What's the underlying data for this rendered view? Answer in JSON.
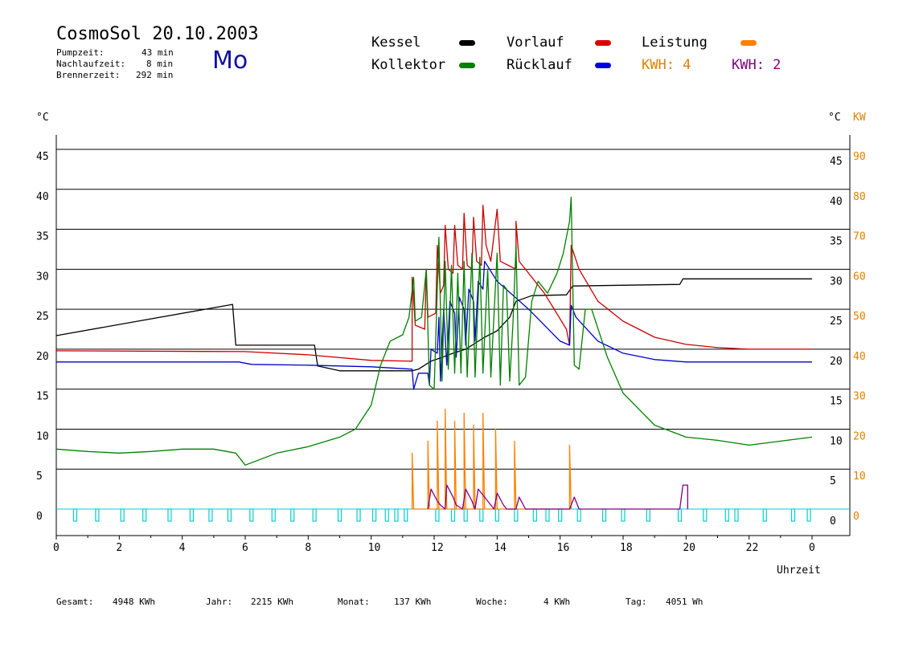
{
  "header": {
    "title": "CosmoSol 20.10.2003",
    "pumpzeit_label": "Pumpzeit:",
    "pumpzeit_value": "43 min",
    "nachlauf_label": "Nachlaufzeit:",
    "nachlauf_value": "8 min",
    "brenner_label": "Brennerzeit:",
    "brenner_value": "292 min",
    "weekday": "Mo"
  },
  "legend": {
    "kessel": "Kessel",
    "kollektor": "Kollektor",
    "vorlauf": "Vorlauf",
    "ruecklauf": "Rücklauf",
    "leistung": "Leistung",
    "kwh1": "KWH: 4",
    "kwh2": "KWH: 2"
  },
  "footer": {
    "gesamt_label": "Gesamt:",
    "gesamt_value": "4948 KWh",
    "jahr_label": "Jahr:",
    "jahr_value": "2215 KWh",
    "monat_label": "Monat:",
    "monat_value": "137 KWh",
    "woche_label": "Woche:",
    "woche_value": "4 KWh",
    "tag_label": "Tag:",
    "tag_value": "4051 Wh"
  },
  "chart_data": {
    "type": "line",
    "xlabel": "Uhrzeit",
    "ylabel_left": "°C",
    "ylabel_right": "°C",
    "ylabel_right2": "KW",
    "xlim": [
      0,
      24
    ],
    "ylim": [
      0,
      45
    ],
    "y2lim": [
      0,
      90
    ],
    "x_ticks": [
      "0",
      "2",
      "4",
      "6",
      "8",
      "10",
      "12",
      "14",
      "16",
      "18",
      "20",
      "22",
      "0"
    ],
    "y_ticks": [
      0,
      5,
      10,
      15,
      20,
      25,
      30,
      35,
      40,
      45
    ],
    "y2_ticks": [
      0,
      10,
      20,
      30,
      40,
      50,
      60,
      70,
      80,
      90
    ],
    "grid": true,
    "colors": {
      "kessel": "#000000",
      "kollektor": "#008000",
      "vorlauf": "#cc0000",
      "ruecklauf": "#0000cc",
      "leistung": "#ff8000",
      "kwh2": "#800080",
      "brenner": "#00d0d0"
    },
    "series": [
      {
        "name": "Kessel",
        "color": "#000000",
        "points": [
          [
            0,
            21.7
          ],
          [
            5.6,
            25.6
          ],
          [
            5.7,
            20.5
          ],
          [
            8.2,
            20.5
          ],
          [
            8.3,
            17.9
          ],
          [
            9,
            17.3
          ],
          [
            11.3,
            17.3
          ],
          [
            11.5,
            17.5
          ],
          [
            11.9,
            18.5
          ],
          [
            12.2,
            18.9
          ],
          [
            12.6,
            19.5
          ],
          [
            13,
            20
          ],
          [
            13.6,
            21.5
          ],
          [
            14,
            22.3
          ],
          [
            14.4,
            24
          ],
          [
            14.6,
            26
          ],
          [
            15.1,
            26.7
          ],
          [
            16.2,
            26.8
          ],
          [
            16.4,
            27.9
          ],
          [
            19.8,
            28.1
          ],
          [
            19.9,
            28.8
          ],
          [
            24,
            28.8
          ]
        ]
      },
      {
        "name": "Vorlauf",
        "color": "#cc0000",
        "points": [
          [
            0,
            19.8
          ],
          [
            6,
            19.7
          ],
          [
            8,
            19.3
          ],
          [
            10,
            18.6
          ],
          [
            11.3,
            18.5
          ],
          [
            11.3,
            29
          ],
          [
            11.4,
            23
          ],
          [
            11.7,
            22.5
          ],
          [
            11.75,
            30
          ],
          [
            11.8,
            24
          ],
          [
            12.05,
            24.5
          ],
          [
            12.1,
            33
          ],
          [
            12.2,
            27
          ],
          [
            12.3,
            28
          ],
          [
            12.35,
            35.5
          ],
          [
            12.45,
            30
          ],
          [
            12.6,
            29.5
          ],
          [
            12.65,
            35.5
          ],
          [
            12.75,
            30.5
          ],
          [
            12.9,
            30
          ],
          [
            12.95,
            37
          ],
          [
            13.05,
            30.5
          ],
          [
            13.2,
            30
          ],
          [
            13.25,
            36.5
          ],
          [
            13.35,
            31
          ],
          [
            13.5,
            30.5
          ],
          [
            13.55,
            38
          ],
          [
            13.65,
            33
          ],
          [
            13.8,
            31
          ],
          [
            14,
            37.5
          ],
          [
            14.1,
            31
          ],
          [
            14.6,
            30
          ],
          [
            14.6,
            36
          ],
          [
            14.7,
            31
          ],
          [
            15.5,
            27
          ],
          [
            16.2,
            22.5
          ],
          [
            16.3,
            20.5
          ],
          [
            16.35,
            33
          ],
          [
            16.6,
            30
          ],
          [
            17.2,
            26
          ],
          [
            18,
            23.5
          ],
          [
            19,
            21.5
          ],
          [
            20,
            20.6
          ],
          [
            21,
            20.2
          ],
          [
            22,
            20
          ],
          [
            24,
            20
          ]
        ]
      },
      {
        "name": "Rücklauf",
        "color": "#0000cc",
        "points": [
          [
            0,
            18.4
          ],
          [
            5.8,
            18.4
          ],
          [
            6.2,
            18.1
          ],
          [
            8,
            18
          ],
          [
            10,
            17.8
          ],
          [
            11.3,
            17.5
          ],
          [
            11.35,
            15
          ],
          [
            11.5,
            17
          ],
          [
            11.8,
            17
          ],
          [
            11.85,
            15.5
          ],
          [
            11.9,
            20
          ],
          [
            12.1,
            19.5
          ],
          [
            12.15,
            24
          ],
          [
            12.2,
            16
          ],
          [
            12.3,
            25
          ],
          [
            12.4,
            18
          ],
          [
            12.5,
            26
          ],
          [
            12.65,
            24.5
          ],
          [
            12.7,
            19
          ],
          [
            12.8,
            26.5
          ],
          [
            12.95,
            25
          ],
          [
            13,
            20.5
          ],
          [
            13.1,
            27.5
          ],
          [
            13.25,
            26
          ],
          [
            13.3,
            21
          ],
          [
            13.4,
            28.5
          ],
          [
            13.55,
            27.5
          ],
          [
            13.6,
            31
          ],
          [
            14,
            28.5
          ],
          [
            15,
            25
          ],
          [
            16,
            21
          ],
          [
            16.3,
            20.5
          ],
          [
            16.35,
            25.5
          ],
          [
            16.5,
            24
          ],
          [
            17.2,
            21
          ],
          [
            18,
            19.5
          ],
          [
            19,
            18.7
          ],
          [
            20,
            18.4
          ],
          [
            24,
            18.4
          ]
        ]
      },
      {
        "name": "Kollektor",
        "color": "#008000",
        "points": [
          [
            0,
            7.5
          ],
          [
            1,
            7.2
          ],
          [
            2,
            7
          ],
          [
            3,
            7.2
          ],
          [
            4,
            7.5
          ],
          [
            5,
            7.5
          ],
          [
            5.7,
            7
          ],
          [
            6,
            5.5
          ],
          [
            6.2,
            5.8
          ],
          [
            7,
            7
          ],
          [
            8,
            7.8
          ],
          [
            9,
            9
          ],
          [
            9.5,
            10
          ],
          [
            10,
            13
          ],
          [
            10.3,
            18
          ],
          [
            10.6,
            21
          ],
          [
            11,
            21.8
          ],
          [
            11.2,
            24
          ],
          [
            11.35,
            29
          ],
          [
            11.4,
            23.5
          ],
          [
            11.6,
            24
          ],
          [
            11.75,
            30
          ],
          [
            11.85,
            15.5
          ],
          [
            12,
            15
          ],
          [
            12.15,
            34
          ],
          [
            12.25,
            16
          ],
          [
            12.35,
            31
          ],
          [
            12.45,
            17.5
          ],
          [
            12.55,
            30.5
          ],
          [
            12.65,
            17
          ],
          [
            12.75,
            29.5
          ],
          [
            12.85,
            17
          ],
          [
            12.95,
            31
          ],
          [
            13.05,
            16.5
          ],
          [
            13.2,
            32
          ],
          [
            13.3,
            16.5
          ],
          [
            13.45,
            31.5
          ],
          [
            13.55,
            17
          ],
          [
            13.7,
            30
          ],
          [
            13.8,
            16.5
          ],
          [
            14,
            32
          ],
          [
            14.1,
            15.5
          ],
          [
            14.2,
            28
          ],
          [
            14.3,
            27.5
          ],
          [
            14.4,
            16
          ],
          [
            14.5,
            23
          ],
          [
            14.6,
            33
          ],
          [
            14.7,
            15.5
          ],
          [
            14.9,
            16.5
          ],
          [
            15.1,
            26
          ],
          [
            15.3,
            28.5
          ],
          [
            15.6,
            27
          ],
          [
            15.9,
            29.5
          ],
          [
            16.1,
            32
          ],
          [
            16.3,
            36
          ],
          [
            16.35,
            39
          ],
          [
            16.45,
            18
          ],
          [
            16.6,
            17.5
          ],
          [
            16.8,
            25
          ],
          [
            17,
            25
          ],
          [
            17.5,
            19
          ],
          [
            18,
            14.5
          ],
          [
            19,
            10.5
          ],
          [
            20,
            9
          ],
          [
            21,
            8.6
          ],
          [
            22,
            8
          ],
          [
            23,
            8.5
          ],
          [
            24,
            9
          ]
        ]
      },
      {
        "name": "Leistung",
        "color": "#ff8000",
        "points": [
          [
            11.3,
            0
          ],
          [
            11.3,
            7
          ],
          [
            11.35,
            0
          ],
          [
            11.8,
            0
          ],
          [
            11.8,
            8.5
          ],
          [
            11.85,
            0
          ],
          [
            12.1,
            0
          ],
          [
            12.1,
            11
          ],
          [
            12.15,
            0
          ],
          [
            12.35,
            0
          ],
          [
            12.35,
            12.5
          ],
          [
            12.4,
            0
          ],
          [
            12.65,
            0
          ],
          [
            12.65,
            11
          ],
          [
            12.7,
            0
          ],
          [
            12.95,
            0
          ],
          [
            12.95,
            12
          ],
          [
            13,
            0
          ],
          [
            13.25,
            0
          ],
          [
            13.25,
            10.5
          ],
          [
            13.3,
            0
          ],
          [
            13.55,
            0
          ],
          [
            13.55,
            12
          ],
          [
            13.6,
            0
          ],
          [
            13.95,
            0
          ],
          [
            13.95,
            10
          ],
          [
            14,
            0
          ],
          [
            14.55,
            0
          ],
          [
            14.55,
            8.5
          ],
          [
            14.6,
            0
          ],
          [
            16.3,
            0
          ],
          [
            16.3,
            8
          ],
          [
            16.35,
            0
          ]
        ]
      },
      {
        "name": "KWH 2",
        "color": "#800080",
        "points": [
          [
            11.8,
            0
          ],
          [
            11.9,
            2.5
          ],
          [
            12.1,
            1
          ],
          [
            12.2,
            0.5
          ],
          [
            12.35,
            0
          ],
          [
            12.4,
            3
          ],
          [
            12.6,
            1.5
          ],
          [
            12.7,
            0.5
          ],
          [
            12.9,
            0
          ],
          [
            13,
            2.5
          ],
          [
            13.2,
            1
          ],
          [
            13.3,
            0
          ],
          [
            13.4,
            2.5
          ],
          [
            13.6,
            1.5
          ],
          [
            13.8,
            0.5
          ],
          [
            13.9,
            0
          ],
          [
            14,
            2
          ],
          [
            14.2,
            0.5
          ],
          [
            14.3,
            0
          ],
          [
            14.6,
            0
          ],
          [
            14.7,
            1.5
          ],
          [
            14.9,
            0
          ],
          [
            16.3,
            0
          ],
          [
            16.45,
            1.5
          ],
          [
            16.6,
            0
          ],
          [
            19.8,
            0
          ],
          [
            19.9,
            3
          ],
          [
            20.05,
            3
          ],
          [
            20.05,
            0
          ]
        ]
      }
    ],
    "brenner_on_hours": [
      0.6,
      1.3,
      2.1,
      2.8,
      3.6,
      4.3,
      4.9,
      5.5,
      6.2,
      6.9,
      7.5,
      8.2,
      9,
      9.6,
      10.1,
      10.5,
      10.8,
      11.1,
      12.1,
      12.6,
      13,
      13.5,
      14,
      14.6,
      15.2,
      15.6,
      16,
      16.6,
      17.4,
      18,
      18.8,
      19.8,
      20.6,
      21.3,
      21.6,
      22.5,
      23.4,
      23.9
    ]
  }
}
